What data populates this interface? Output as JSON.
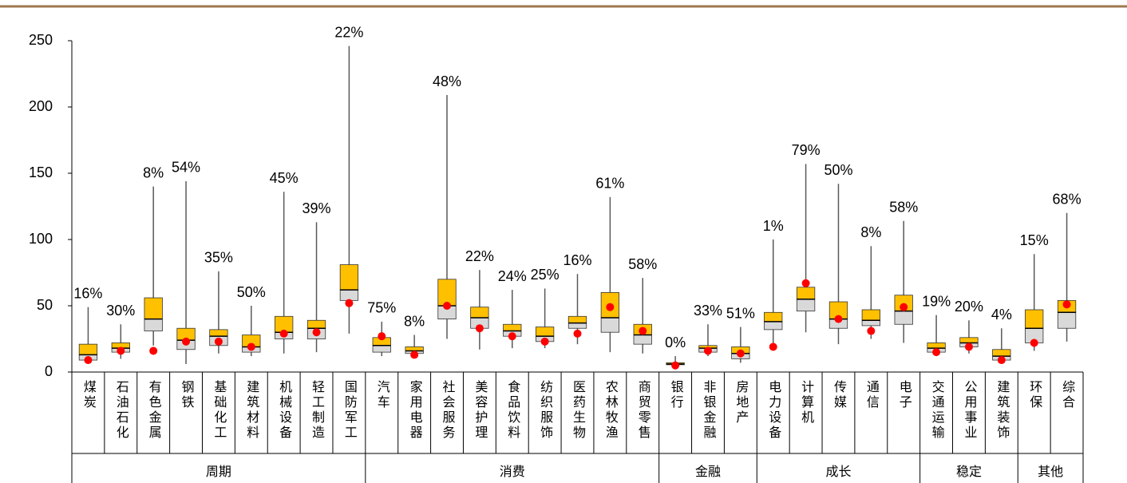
{
  "chart_data": {
    "type": "box",
    "groups": [
      {
        "name": "周期",
        "categories": [
          "煤炭",
          "石油石化",
          "有色金属",
          "钢铁",
          "基础化工",
          "建筑材料",
          "机械设备",
          "轻工制造",
          "国防军工"
        ]
      },
      {
        "name": "消费",
        "categories": [
          "汽车",
          "家用电器",
          "社会服务",
          "美容护理",
          "食品饮料",
          "纺织服饰",
          "医药生物",
          "农林牧渔",
          "商贸零售"
        ]
      },
      {
        "name": "金融",
        "categories": [
          "银行",
          "非银金融",
          "房地产"
        ]
      },
      {
        "name": "成长",
        "categories": [
          "电力设备",
          "计算机",
          "传媒",
          "通信",
          "电子"
        ]
      },
      {
        "name": "稳定",
        "categories": [
          "交通运输",
          "公用事业",
          "建筑装饰"
        ]
      },
      {
        "name": "其他",
        "categories": [
          "环保",
          "综合"
        ]
      }
    ],
    "min": [
      7,
      10,
      20,
      6,
      14,
      12,
      14,
      15,
      29,
      12,
      11,
      25,
      17,
      18,
      18,
      21,
      15,
      14,
      4,
      12,
      7,
      20,
      30,
      21,
      25,
      22,
      12,
      14,
      7,
      16,
      23
    ],
    "q1": [
      9,
      15,
      31,
      17,
      20,
      15,
      25,
      25,
      54,
      15,
      14,
      40,
      33,
      27,
      23,
      33,
      30,
      21,
      5.5,
      15,
      10,
      32,
      46,
      33,
      35,
      36,
      15,
      19,
      9,
      22,
      33
    ],
    "median": [
      13,
      18,
      40,
      24,
      27,
      19,
      30,
      33,
      62,
      20,
      16,
      50,
      41,
      31,
      27,
      37,
      41,
      28,
      6,
      18,
      14,
      38,
      55,
      40,
      39,
      46,
      18,
      22,
      12,
      33,
      45
    ],
    "q3": [
      21,
      22,
      56,
      33,
      32,
      28,
      42,
      39,
      81,
      26,
      19,
      70,
      49,
      36,
      34,
      42,
      60,
      36,
      7,
      20,
      19,
      45,
      64,
      53,
      47,
      58,
      22,
      26,
      17,
      47,
      54
    ],
    "max": [
      49,
      36,
      140,
      144,
      76,
      50,
      136,
      113,
      246,
      38,
      28,
      209,
      77,
      62,
      63,
      74,
      132,
      71,
      12,
      36,
      34,
      100,
      157,
      142,
      95,
      114,
      43,
      39,
      33,
      89,
      120
    ],
    "current": [
      9,
      16,
      16,
      23,
      23,
      19,
      29,
      30,
      52,
      27,
      13,
      50,
      33,
      27,
      23,
      29,
      49,
      31,
      5,
      16,
      14,
      19,
      67,
      40,
      31,
      49,
      15,
      19,
      9,
      22,
      51
    ],
    "values": [
      16,
      30,
      8,
      54,
      35,
      50,
      45,
      39,
      22,
      75,
      8,
      48,
      22,
      24,
      25,
      16,
      61,
      58,
      0,
      33,
      51,
      1,
      79,
      50,
      8,
      58,
      19,
      20,
      4,
      15,
      68
    ],
    "value_labels": [
      "16%",
      "30%",
      "8%",
      "54%",
      "35%",
      "50%",
      "45%",
      "39%",
      "22%",
      "75%",
      "8%",
      "48%",
      "22%",
      "24%",
      "25%",
      "16%",
      "61%",
      "58%",
      "0%",
      "33%",
      "51%",
      "1%",
      "79%",
      "50%",
      "8%",
      "58%",
      "19%",
      "20%",
      "4%",
      "15%",
      "68%"
    ],
    "colors": {
      "lower": "#D9D9D9",
      "upper": "#FFC000",
      "current": "#FF0000",
      "whisker": "#595959"
    },
    "ylim": [
      0,
      250
    ],
    "yticks": [
      0,
      50,
      100,
      150,
      200,
      250
    ],
    "grid": false
  }
}
